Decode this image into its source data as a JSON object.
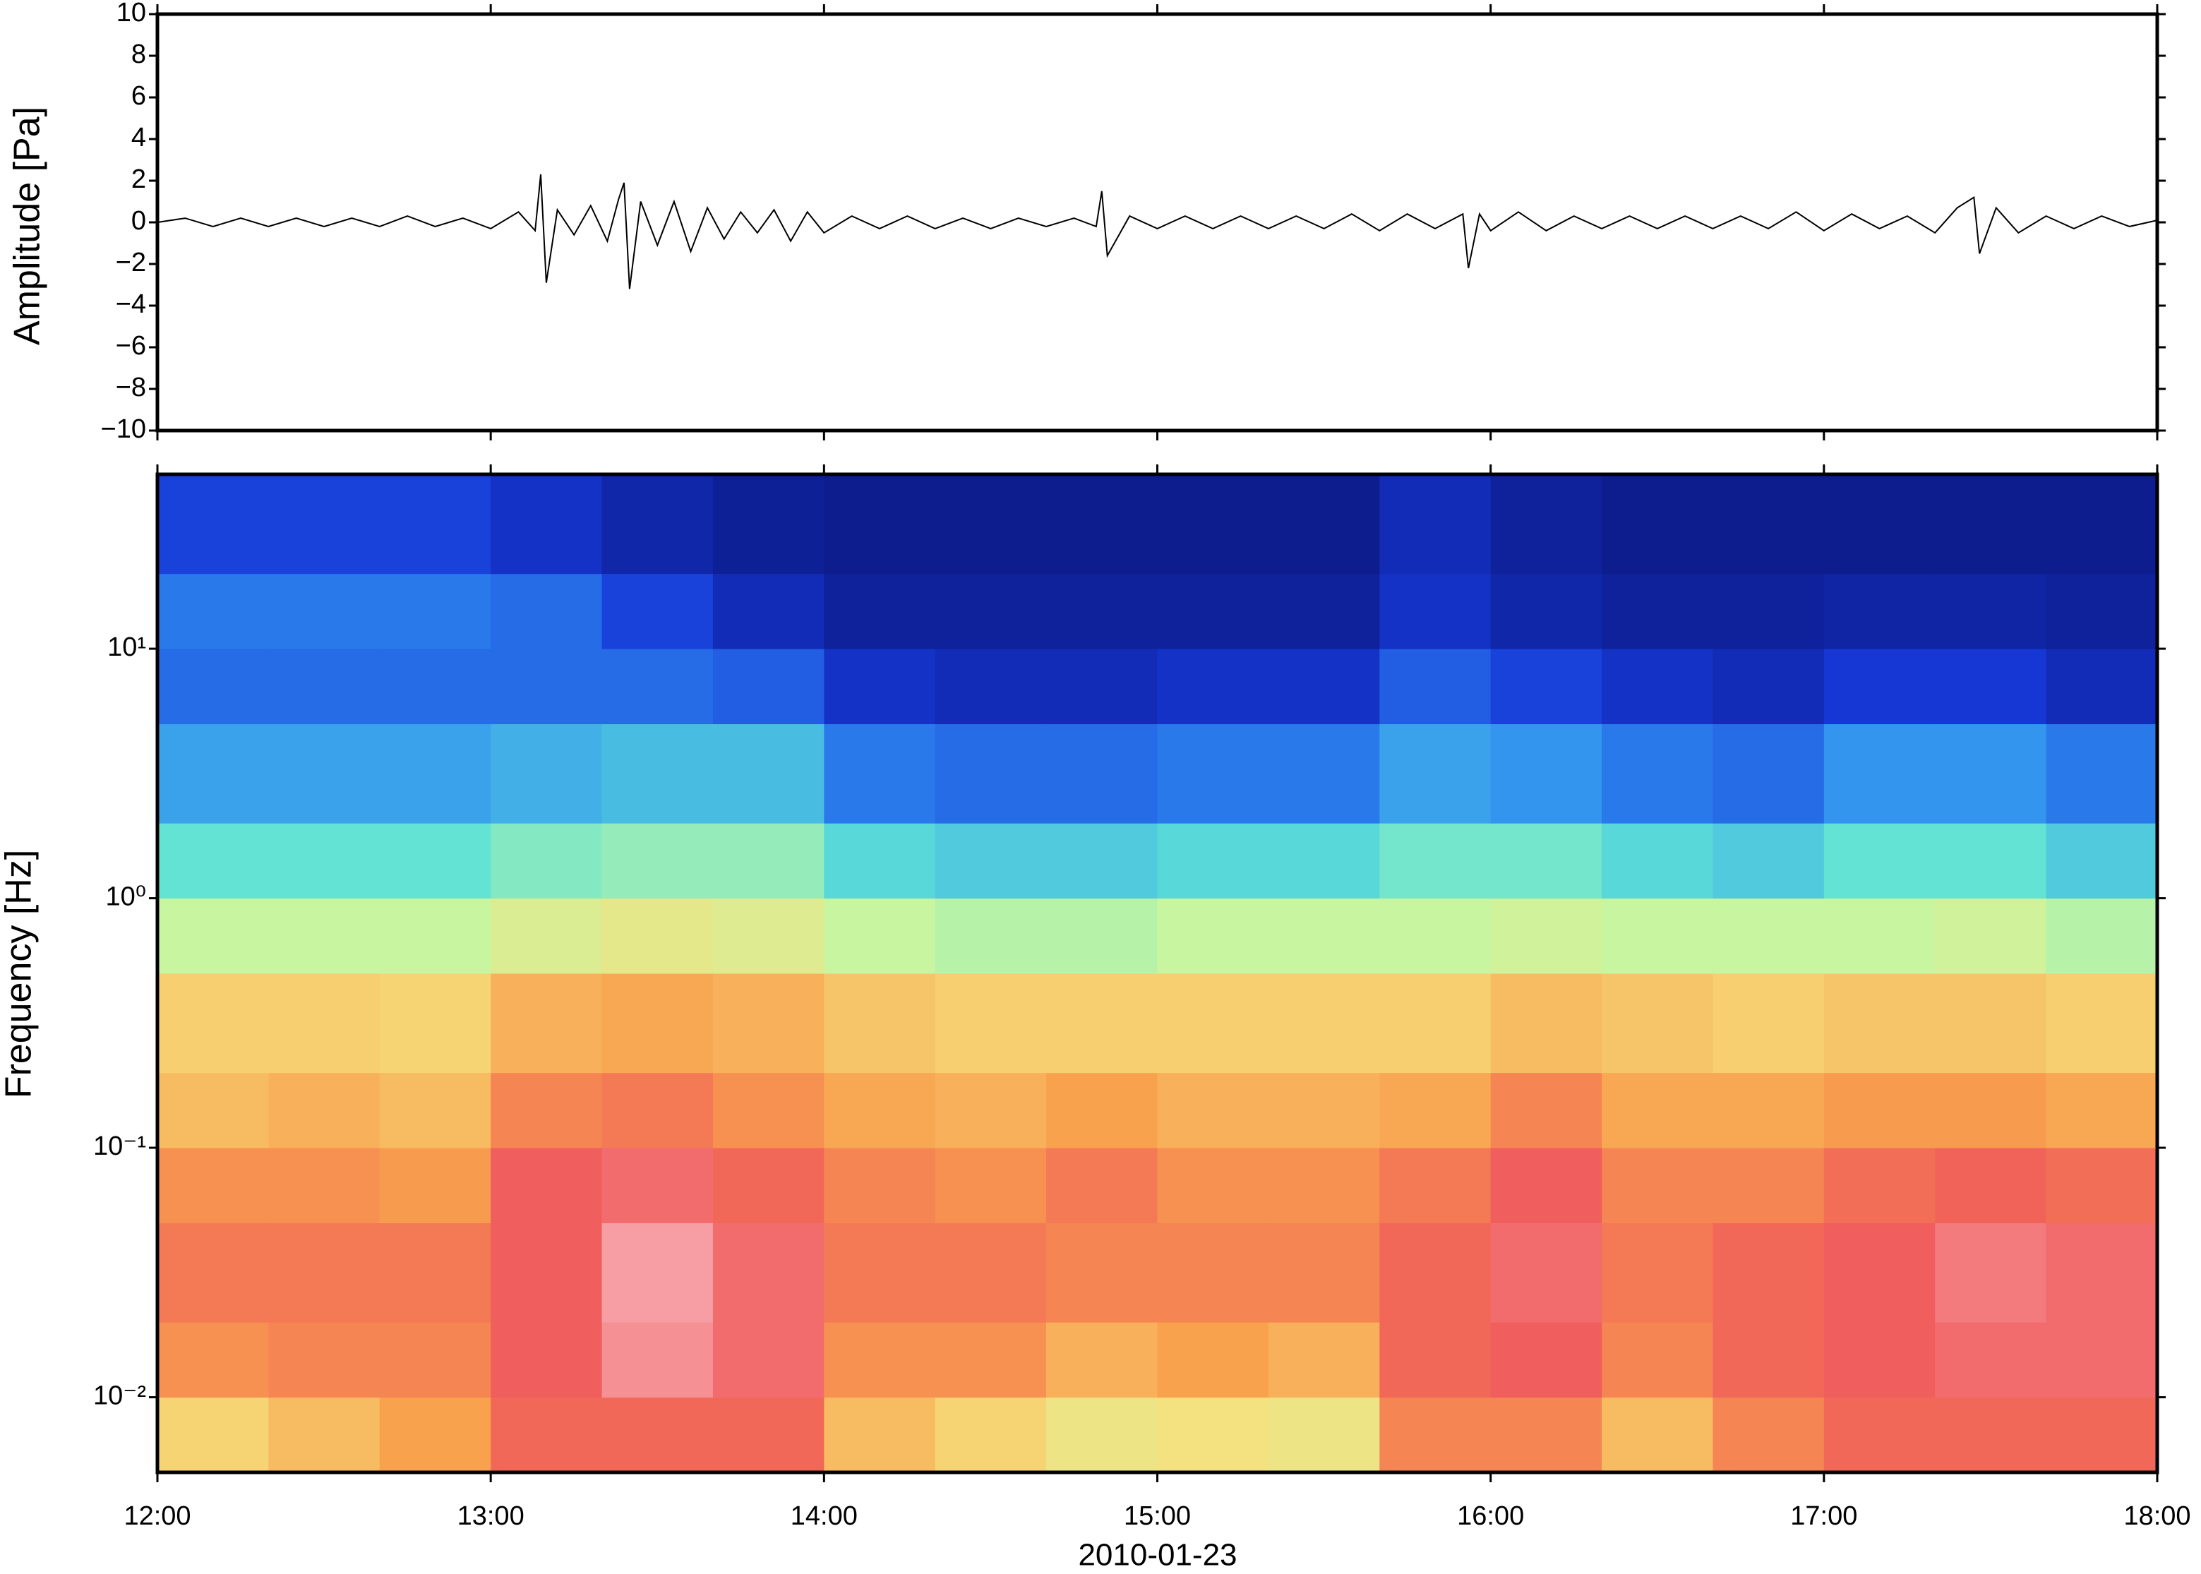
{
  "chart_data": [
    {
      "type": "line",
      "ylabel": "Amplitude [Pa]",
      "color": "#000000",
      "xlim": [
        "12:00",
        "18:00"
      ],
      "ylim": [
        -10,
        10
      ],
      "yticks": [
        {
          "value": -10,
          "label": "−10"
        },
        {
          "value": -8,
          "label": "−8"
        },
        {
          "value": -6,
          "label": "−6"
        },
        {
          "value": -4,
          "label": "−4"
        },
        {
          "value": -2,
          "label": "−2"
        },
        0,
        2,
        4,
        6,
        8,
        10
      ],
      "x": [
        "12:00",
        "12:05",
        "12:10",
        "12:15",
        "12:20",
        "12:25",
        "12:30",
        "12:35",
        "12:40",
        "12:45",
        "12:50",
        "12:55",
        "13:00",
        "13:05",
        "13:08",
        "13:09",
        "13:10",
        "13:12",
        "13:15",
        "13:18",
        "13:21",
        "13:23",
        "13:24",
        "13:25",
        "13:27",
        "13:30",
        "13:33",
        "13:36",
        "13:39",
        "13:42",
        "13:45",
        "13:48",
        "13:51",
        "13:54",
        "13:57",
        "14:00",
        "14:05",
        "14:10",
        "14:15",
        "14:20",
        "14:25",
        "14:30",
        "14:35",
        "14:40",
        "14:45",
        "14:49",
        "14:50",
        "14:51",
        "14:55",
        "15:00",
        "15:05",
        "15:10",
        "15:15",
        "15:20",
        "15:25",
        "15:30",
        "15:35",
        "15:40",
        "15:45",
        "15:50",
        "15:55",
        "15:56",
        "15:58",
        "16:00",
        "16:05",
        "16:10",
        "16:15",
        "16:20",
        "16:25",
        "16:30",
        "16:35",
        "16:40",
        "16:45",
        "16:50",
        "16:55",
        "17:00",
        "17:05",
        "17:10",
        "17:15",
        "17:20",
        "17:24",
        "17:27",
        "17:28",
        "17:31",
        "17:35",
        "17:40",
        "17:45",
        "17:50",
        "17:55",
        "18:00"
      ],
      "values": [
        0,
        0.2,
        -0.2,
        0.2,
        -0.2,
        0.2,
        -0.2,
        0.2,
        -0.2,
        0.3,
        -0.2,
        0.2,
        -0.3,
        0.5,
        -0.4,
        2.3,
        -2.9,
        0.6,
        -0.6,
        0.8,
        -0.9,
        1.1,
        1.9,
        -3.2,
        1.0,
        -1.1,
        1.0,
        -1.4,
        0.7,
        -0.8,
        0.5,
        -0.5,
        0.6,
        -0.9,
        0.5,
        -0.5,
        0.3,
        -0.3,
        0.3,
        -0.3,
        0.2,
        -0.3,
        0.2,
        -0.2,
        0.2,
        -0.2,
        1.5,
        -1.6,
        0.3,
        -0.3,
        0.3,
        -0.3,
        0.3,
        -0.3,
        0.3,
        -0.3,
        0.4,
        -0.4,
        0.4,
        -0.3,
        0.4,
        -2.2,
        0.4,
        -0.4,
        0.5,
        -0.4,
        0.3,
        -0.3,
        0.3,
        -0.3,
        0.3,
        -0.3,
        0.3,
        -0.3,
        0.5,
        -0.4,
        0.4,
        -0.3,
        0.3,
        -0.5,
        0.7,
        1.2,
        -1.5,
        0.7,
        -0.5,
        0.3,
        -0.3,
        0.3,
        -0.2,
        0.1
      ]
    },
    {
      "type": "heatmap",
      "ylabel": "Frequency [Hz]",
      "xlabel": "2010-01-23",
      "log_y": true,
      "xlim": [
        "12:00",
        "18:00"
      ],
      "xticks": [
        "12:00",
        "13:00",
        "14:00",
        "15:00",
        "16:00",
        "17:00",
        "18:00"
      ],
      "ylim": [
        0.005,
        50
      ],
      "yticks": [
        {
          "value": 0.01,
          "label": "10⁻²"
        },
        {
          "value": 0.1,
          "label": "10⁻¹"
        },
        {
          "value": 1,
          "label": "10⁰"
        },
        {
          "value": 10,
          "label": "10¹"
        }
      ],
      "colormap": [
        "#0c1880",
        "#1638d8",
        "#2f8ef0",
        "#5ee2d6",
        "#c8f5a0",
        "#f6e07e",
        "#f8a24e",
        "#f05a5a",
        "#f8b4bc"
      ],
      "x_bins": [
        "12:00",
        "12:20",
        "12:40",
        "13:00",
        "13:20",
        "13:40",
        "14:00",
        "14:20",
        "14:40",
        "15:00",
        "15:20",
        "15:40",
        "16:00",
        "16:20",
        "16:40",
        "17:00",
        "17:20",
        "17:40",
        "18:00"
      ],
      "y_bins": [
        0.005,
        0.01,
        0.02,
        0.05,
        0.1,
        0.2,
        0.5,
        1,
        2,
        5,
        10,
        20,
        50
      ],
      "values": [
        [
          0.65,
          0.7,
          0.75,
          0.85,
          0.85,
          0.85,
          0.7,
          0.65,
          0.6,
          0.62,
          0.6,
          0.8,
          0.8,
          0.7,
          0.8,
          0.85,
          0.85,
          0.85
        ],
        [
          0.78,
          0.8,
          0.8,
          0.88,
          0.95,
          0.9,
          0.78,
          0.78,
          0.72,
          0.75,
          0.72,
          0.85,
          0.88,
          0.8,
          0.85,
          0.88,
          0.9,
          0.9
        ],
        [
          0.82,
          0.82,
          0.82,
          0.88,
          0.97,
          0.9,
          0.82,
          0.82,
          0.8,
          0.8,
          0.8,
          0.85,
          0.9,
          0.82,
          0.85,
          0.88,
          0.92,
          0.9
        ],
        [
          0.78,
          0.78,
          0.76,
          0.88,
          0.9,
          0.85,
          0.8,
          0.78,
          0.82,
          0.78,
          0.78,
          0.82,
          0.88,
          0.8,
          0.8,
          0.84,
          0.86,
          0.84
        ],
        [
          0.7,
          0.72,
          0.7,
          0.8,
          0.82,
          0.78,
          0.74,
          0.72,
          0.75,
          0.72,
          0.72,
          0.74,
          0.8,
          0.74,
          0.74,
          0.76,
          0.76,
          0.74
        ],
        [
          0.66,
          0.66,
          0.65,
          0.72,
          0.74,
          0.72,
          0.68,
          0.66,
          0.66,
          0.66,
          0.66,
          0.66,
          0.7,
          0.68,
          0.66,
          0.68,
          0.68,
          0.66
        ],
        [
          0.5,
          0.5,
          0.5,
          0.55,
          0.58,
          0.56,
          0.5,
          0.48,
          0.48,
          0.5,
          0.5,
          0.5,
          0.52,
          0.5,
          0.5,
          0.5,
          0.52,
          0.48
        ],
        [
          0.38,
          0.38,
          0.38,
          0.42,
          0.44,
          0.44,
          0.36,
          0.34,
          0.34,
          0.36,
          0.36,
          0.4,
          0.4,
          0.36,
          0.34,
          0.38,
          0.38,
          0.34
        ],
        [
          0.28,
          0.28,
          0.28,
          0.3,
          0.32,
          0.32,
          0.22,
          0.2,
          0.2,
          0.22,
          0.22,
          0.28,
          0.26,
          0.22,
          0.2,
          0.26,
          0.26,
          0.22
        ],
        [
          0.2,
          0.2,
          0.2,
          0.2,
          0.2,
          0.18,
          0.1,
          0.08,
          0.08,
          0.1,
          0.1,
          0.18,
          0.14,
          0.1,
          0.08,
          0.12,
          0.12,
          0.08
        ],
        [
          0.22,
          0.22,
          0.22,
          0.2,
          0.14,
          0.08,
          0.04,
          0.04,
          0.04,
          0.04,
          0.04,
          0.1,
          0.06,
          0.04,
          0.04,
          0.05,
          0.05,
          0.04
        ],
        [
          0.14,
          0.14,
          0.14,
          0.1,
          0.06,
          0.03,
          0.02,
          0.02,
          0.02,
          0.02,
          0.02,
          0.08,
          0.04,
          0.02,
          0.02,
          0.02,
          0.02,
          0.02
        ]
      ]
    }
  ]
}
